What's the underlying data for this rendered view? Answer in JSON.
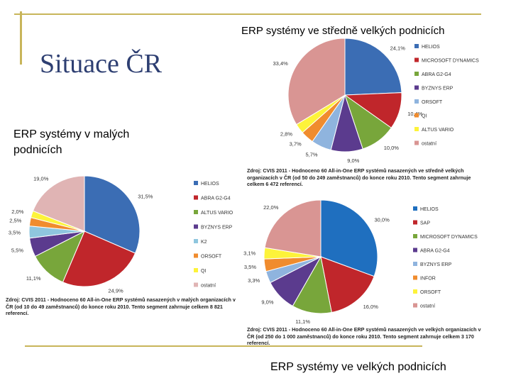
{
  "slide": {
    "title": "Situace ČR",
    "caption_medium": "ERP systémy ve středně velkých podnicích",
    "caption_small_line1": "ERP systémy v malých",
    "caption_small_line2": "podnicích",
    "caption_large": "ERP systémy ve velkých podnicích"
  },
  "colors": {
    "accent_line": "#c8b55a",
    "title": "#2e3f72"
  },
  "chart_data": [
    {
      "type": "pie",
      "id": "medium",
      "labels": [
        "HELIOS",
        "MICROSOFT DYNAMICS",
        "ABRA G2-G4",
        "BYZNYS ERP",
        "ORSOFT",
        "QI",
        "ALTUS VARIO",
        "ostatní"
      ],
      "values": [
        24.1,
        10.4,
        10.0,
        9.0,
        5.7,
        3.7,
        2.8,
        33.4
      ],
      "value_labels": [
        "24,1%",
        "10,4%",
        "10,0%",
        "9,0%",
        "5,7%",
        "3,7%",
        "2,8%",
        "33,4%"
      ],
      "colors": [
        "#3b6db4",
        "#c0262b",
        "#78a63b",
        "#5b3b8e",
        "#8fb4de",
        "#f08c2e",
        "#fdf33a",
        "#d99593"
      ],
      "legend": "right",
      "source": "Zdroj: CVIS 2011 - Hodnoceno 60 All-in-One ERP systémů nasazených ve středně velkých organizacích v ČR (od 50 do 249 zaměstnanců) do konce roku 2010. Tento segment zahrnuje celkem 6 472 referencí."
    },
    {
      "type": "pie",
      "id": "small",
      "labels": [
        "HELIOS",
        "ABRA G2-G4",
        "ALTUS VARIO",
        "BYZNYS ERP",
        "K2",
        "ORSOFT",
        "QI",
        "ostatní"
      ],
      "values": [
        31.5,
        24.9,
        11.1,
        5.5,
        3.5,
        2.5,
        2.0,
        19.0
      ],
      "value_labels": [
        "31,5%",
        "24,9%",
        "11,1%",
        "5,5%",
        "3,5%",
        "2,5%",
        "2,0%",
        "19,0%"
      ],
      "colors": [
        "#3b6db4",
        "#c0262b",
        "#78a63b",
        "#5b3b8e",
        "#8fc6de",
        "#f08c2e",
        "#fdf33a",
        "#e0b4b4"
      ],
      "legend": "right",
      "source": "Zdroj: CVIS 2011 - Hodnoceno 60 All-in-One ERP systémů nasazených v malých organizacích v ČR (od 10 do 49 zaměstnanců) do konce roku 2010. Tento segment zahrnuje celkem 8 821 referencí."
    },
    {
      "type": "pie",
      "id": "large",
      "labels": [
        "HELIOS",
        "SAP",
        "MICROSOFT DYNAMICS",
        "ABRA G2-G4",
        "BYZNYS ERP",
        "INFOR",
        "ORSOFT",
        "ostatní"
      ],
      "values": [
        30.0,
        16.0,
        11.1,
        9.0,
        3.3,
        3.5,
        3.1,
        22.0
      ],
      "value_labels": [
        "30,0%",
        "16,0%",
        "11,1%",
        "9,0%",
        "3,3%",
        "3,5%",
        "3,1%",
        "22,0%"
      ],
      "colors": [
        "#1f6fbf",
        "#c0262b",
        "#78a63b",
        "#5b3b8e",
        "#8fb4de",
        "#f08c2e",
        "#fdf33a",
        "#d99593"
      ],
      "legend": "right",
      "source": "Zdroj: CVIS 2011 - Hodnoceno 60 All-in-One ERP systémů nasazených ve velkých organizacích v ČR (od 250 do 1 000 zaměstnanců) do konce roku 2010. Tento segment zahrnuje celkem 3 170 referencí."
    }
  ]
}
